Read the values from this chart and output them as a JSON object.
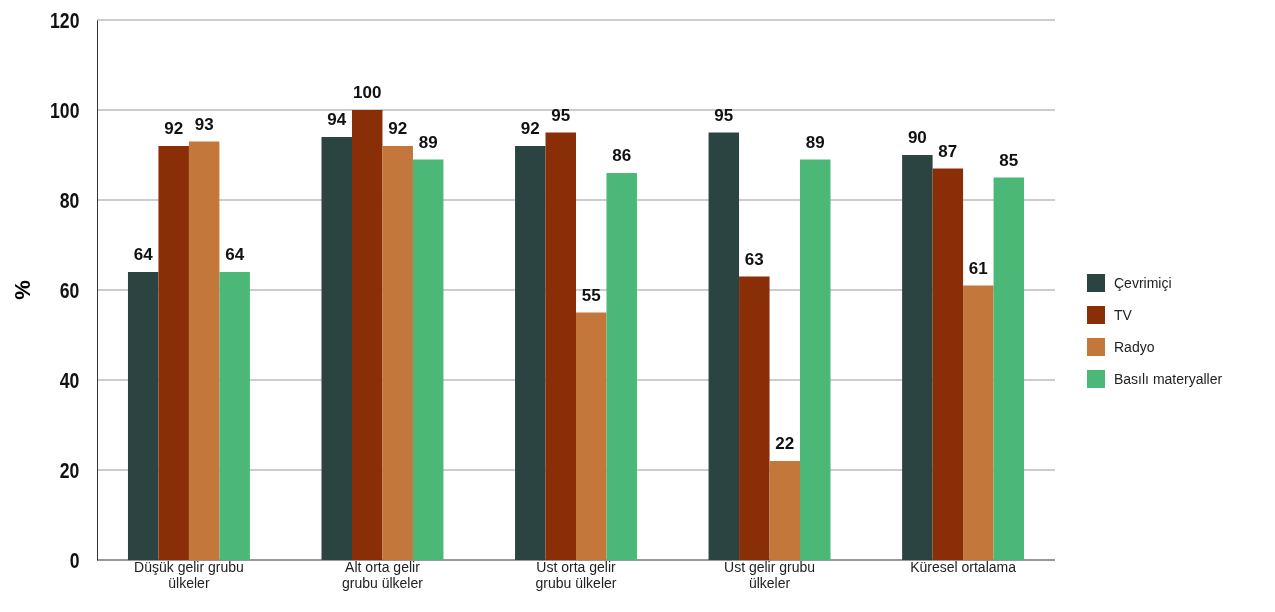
{
  "chart_data": {
    "type": "bar",
    "ylabel": "%",
    "categories": [
      "Düşük gelir grubu ülkeler",
      "Alt orta gelir grubu ülkeler",
      "Üst orta gelir grubu ülkeler",
      "Üst gelir grubu ülkeler",
      "Küresel ortalama"
    ],
    "series": [
      {
        "name": "Çevrimiçi",
        "color": "#2b4442",
        "values": [
          64,
          94,
          92,
          95,
          90
        ]
      },
      {
        "name": "TV",
        "color": "#8a2e07",
        "values": [
          92,
          100,
          95,
          63,
          87
        ]
      },
      {
        "name": "Radyo",
        "color": "#c4773b",
        "values": [
          93,
          92,
          55,
          22,
          61
        ]
      },
      {
        "name": "Basılı materyaller",
        "color": "#4cb878",
        "values": [
          64,
          89,
          86,
          89,
          85
        ]
      }
    ],
    "ylim": [
      0,
      120
    ],
    "yticks": [
      0,
      20,
      40,
      60,
      80,
      100,
      120
    ],
    "grid": "y",
    "legend": "right",
    "data_labels": true
  }
}
